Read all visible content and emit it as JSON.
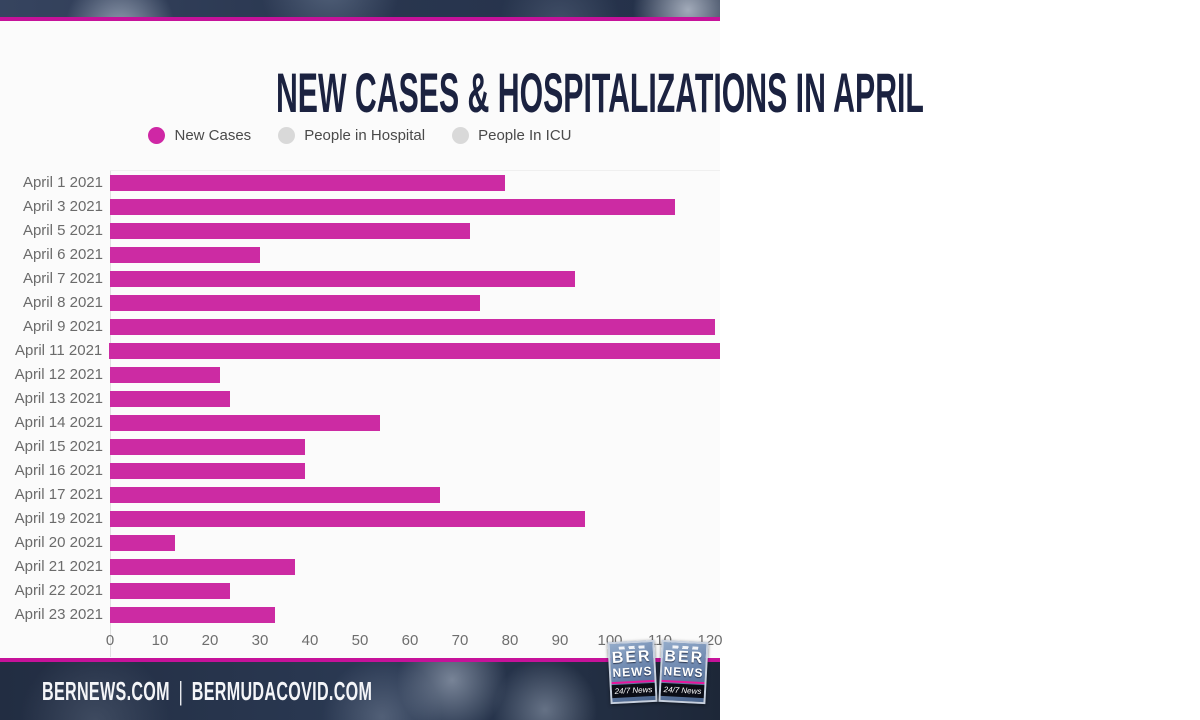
{
  "theme": {
    "accent_magenta": "#c6129a",
    "bar_color": "#cc2ba3",
    "inactive_gray": "#d9d9d9",
    "title_color": "#1b2240"
  },
  "header": {
    "title": "NEW CASES & HOSPITALIZATIONS IN APRIL"
  },
  "legend": {
    "items": [
      {
        "label": "New Cases",
        "color": "#cf27a5",
        "active": true
      },
      {
        "label": "People in Hospital",
        "color": "#d9d9d9",
        "active": false
      },
      {
        "label": "People In ICU",
        "color": "#d9d9d9",
        "active": false
      }
    ]
  },
  "chart_data": {
    "type": "bar",
    "orientation": "horizontal",
    "title": "NEW CASES & HOSPITALIZATIONS IN APRIL",
    "categories": [
      "April 1 2021",
      "April 3 2021",
      "April 5 2021",
      "April 6 2021",
      "April 7 2021",
      "April 8 2021",
      "April 9 2021",
      "April 11 2021",
      "April 12 2021",
      "April 13 2021",
      "April 14 2021",
      "April 15 2021",
      "April 16 2021",
      "April 17 2021",
      "April 19 2021",
      "April 20 2021",
      "April 21 2021",
      "April 22 2021",
      "April 23 2021"
    ],
    "series": [
      {
        "name": "New Cases",
        "color": "#cc2ba3",
        "visible": true,
        "values": [
          79,
          113,
          72,
          30,
          93,
          74,
          121,
          123,
          22,
          24,
          54,
          39,
          39,
          66,
          95,
          13,
          37,
          24,
          33
        ]
      },
      {
        "name": "People in Hospital",
        "color": "#d9d9d9",
        "visible": false,
        "values": []
      },
      {
        "name": "People In ICU",
        "color": "#d9d9d9",
        "visible": false,
        "values": []
      }
    ],
    "xlabel": "",
    "ylabel": "",
    "xlim": [
      0,
      120
    ],
    "xticks": [
      0,
      10,
      20,
      30,
      40,
      50,
      60,
      70,
      80,
      90,
      100,
      110,
      120
    ],
    "grid": false,
    "legend_position": "top",
    "bars_clipped_at_right_edge": [
      "April 11 2021"
    ]
  },
  "footer": {
    "site_left": "BERNEWS.COM",
    "separator": "|",
    "site_right": "BERMUDACOVID.COM",
    "logos": [
      {
        "top": "BER",
        "mid": "NEWS",
        "bottom": "24/7 News"
      },
      {
        "top": "BER",
        "mid": "NEWS",
        "bottom": "24/7 News"
      }
    ]
  }
}
